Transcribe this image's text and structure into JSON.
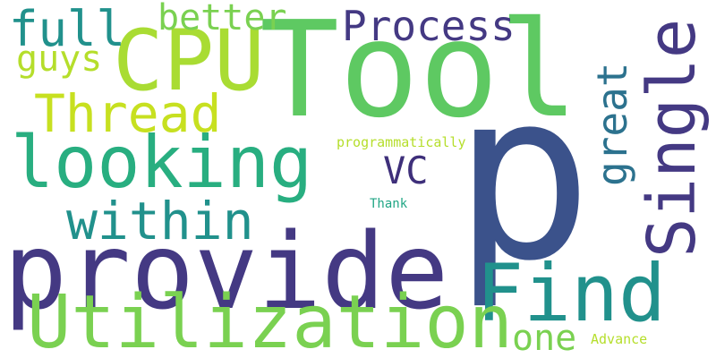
{
  "words": {
    "tool": "Tool",
    "p": "p",
    "provide": "provide",
    "looking": "looking",
    "cpu": "CPU",
    "utilization": "Utilization",
    "find": "Find",
    "single": "Single",
    "thread": "Thread",
    "within": "within",
    "process": "Process",
    "full": "full",
    "better": "better",
    "guys": "guys",
    "great": "great",
    "vc": "VC",
    "one": "one",
    "programmatically": "programmatically",
    "thank": "Thank",
    "advance": "Advance"
  },
  "colors": {
    "background": "#ffffff",
    "dark_purple": "#443983",
    "indigo": "#3b528b",
    "teal_blue": "#2c728e",
    "teal": "#21918c",
    "sea_green": "#28ae80",
    "green": "#5ec962",
    "light_green": "#7ad151",
    "yellow_green": "#b5de2b"
  }
}
